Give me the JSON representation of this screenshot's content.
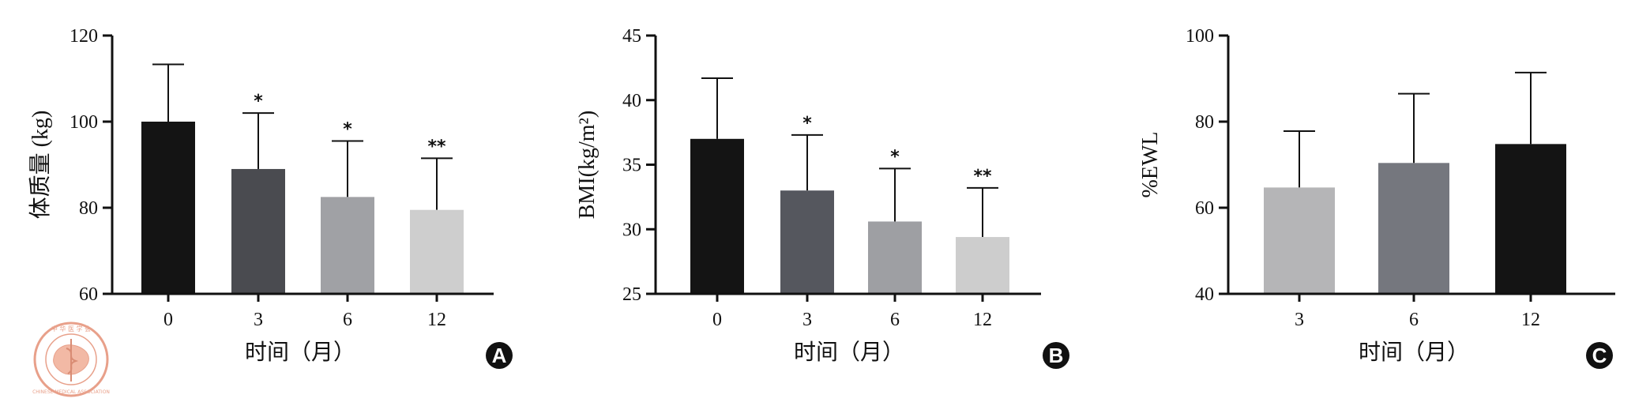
{
  "chart_data": [
    {
      "type": "bar",
      "panel": "A",
      "ylabel": "体质量 (kg)",
      "xlabel": "时间（月）",
      "categories": [
        "0",
        "3",
        "6",
        "12"
      ],
      "values": [
        100,
        89,
        82.5,
        79.5
      ],
      "errors": [
        13.3,
        13,
        13,
        12
      ],
      "significance": [
        "",
        "*",
        "*",
        "**"
      ],
      "colors": [
        "#141414",
        "#4a4b50",
        "#a0a1a5",
        "#cecece"
      ],
      "ylim": [
        60,
        120
      ],
      "yticks": [
        "60",
        "80",
        "100",
        "120"
      ],
      "grid": false
    },
    {
      "type": "bar",
      "panel": "B",
      "ylabel": "BMI(kg/m²)",
      "xlabel": "时间（月）",
      "categories": [
        "0",
        "3",
        "6",
        "12"
      ],
      "values": [
        37,
        33,
        30.6,
        29.4
      ],
      "errors": [
        4.7,
        4.3,
        4.1,
        3.8
      ],
      "significance": [
        "",
        "*",
        "*",
        "**"
      ],
      "colors": [
        "#141414",
        "#55575e",
        "#9e9fa3",
        "#cdcdcd"
      ],
      "ylim": [
        25,
        45
      ],
      "yticks": [
        "25",
        "30",
        "35",
        "40",
        "45"
      ],
      "grid": false
    },
    {
      "type": "bar",
      "panel": "C",
      "ylabel": "%EWL",
      "xlabel": "时间（月）",
      "categories": [
        "3",
        "6",
        "12"
      ],
      "values": [
        64.7,
        70.4,
        74.8
      ],
      "errors": [
        13.1,
        16.1,
        16.6
      ],
      "significance": [
        "",
        "",
        ""
      ],
      "colors": [
        "#b5b5b7",
        "#75777e",
        "#141414"
      ],
      "ylim": [
        40,
        100
      ],
      "yticks": [
        "40",
        "60",
        "80",
        "100"
      ],
      "grid": false
    }
  ],
  "logo": {
    "name": "Chinese Medical Association seal",
    "text_top": "中 华 医 学 会",
    "text_bottom": "CHINESE MEDICAL ASSOCIATION",
    "color": "#e8a08a"
  }
}
